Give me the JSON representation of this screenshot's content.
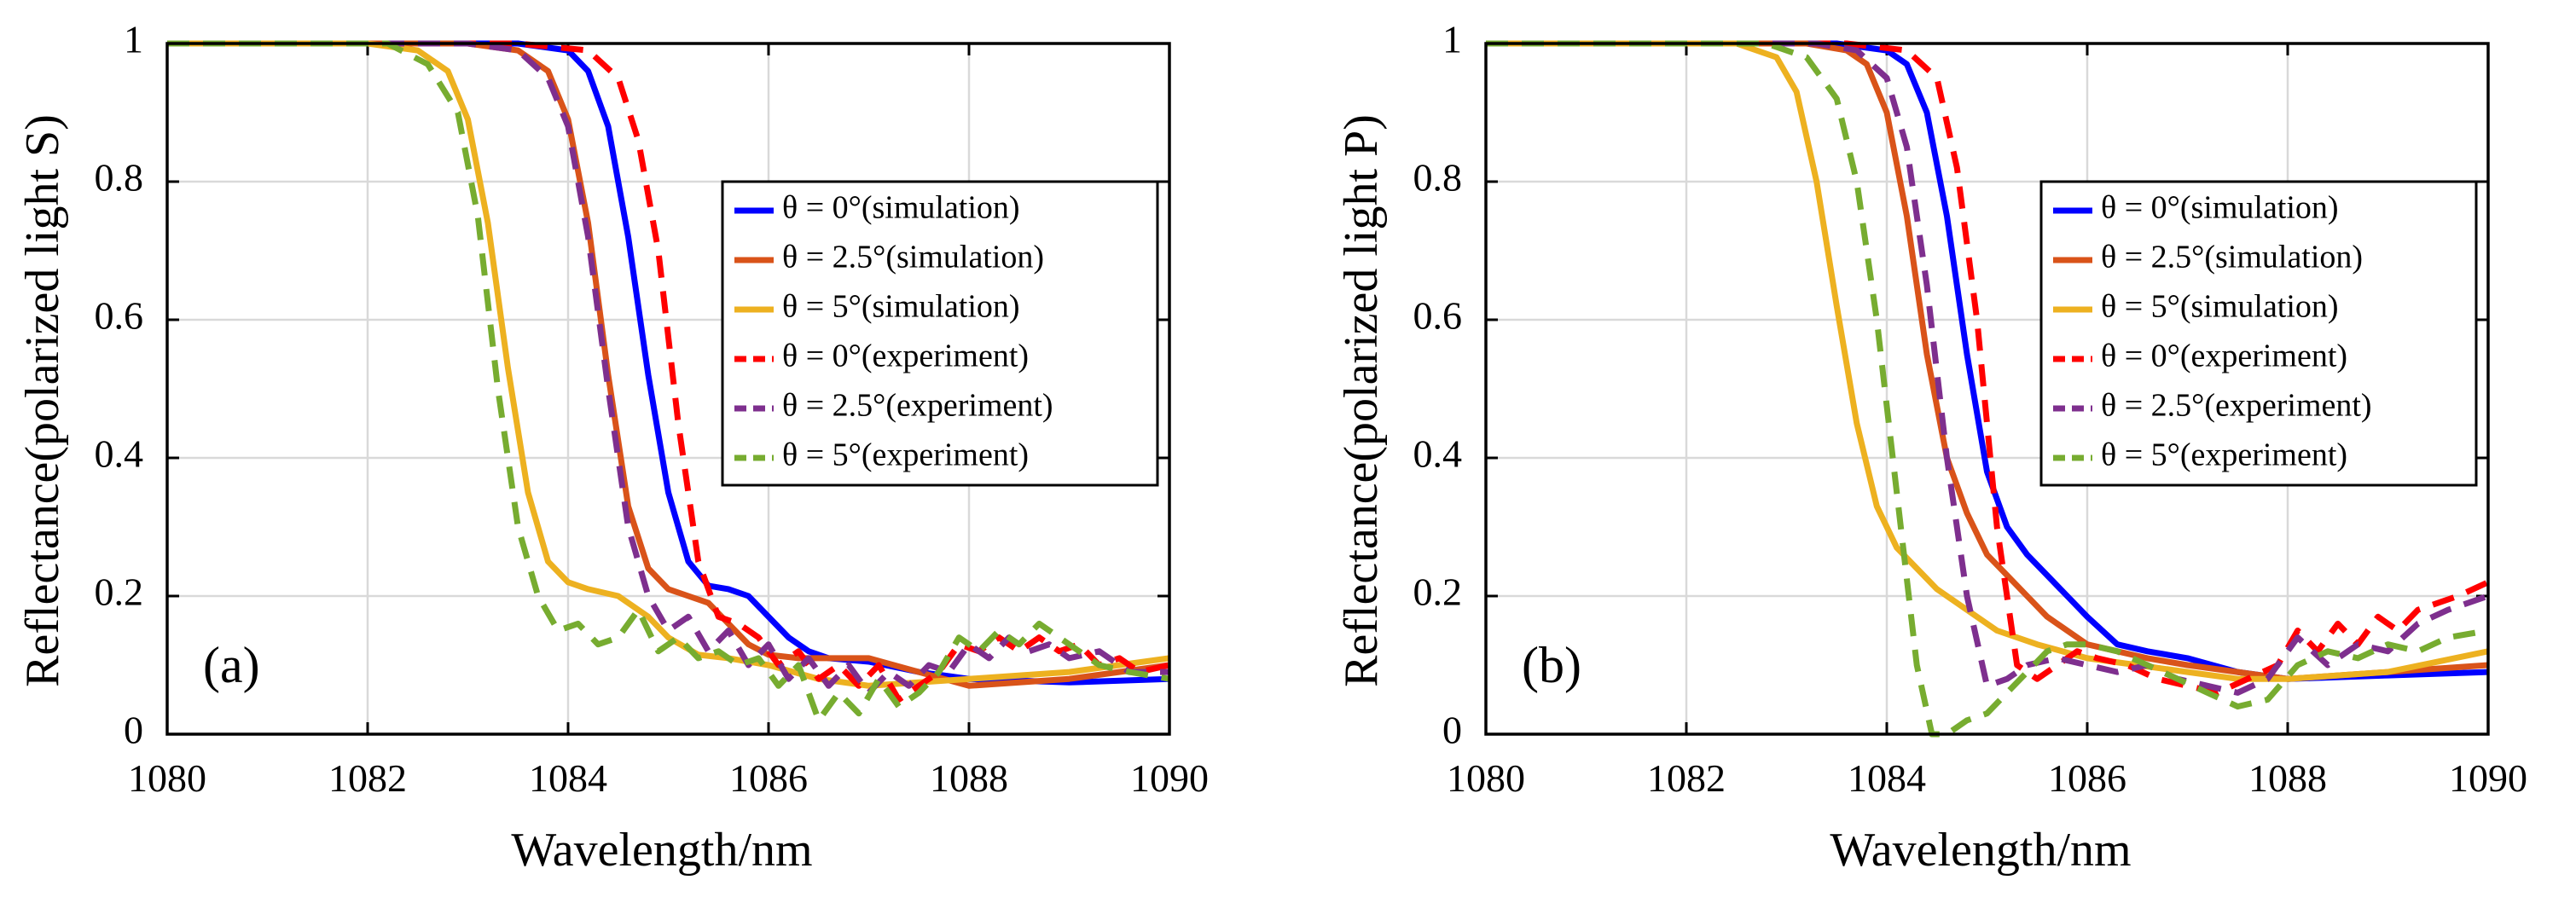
{
  "chart_data": [
    {
      "type": "line",
      "panel_label": "(a)",
      "xlabel": "Wavelength/nm",
      "ylabel": "Reflectance(polarized light S)",
      "xlim": [
        1080,
        1090
      ],
      "ylim": [
        0,
        1
      ],
      "xticks": [
        "1080",
        "1082",
        "1084",
        "1086",
        "1088",
        "1090"
      ],
      "yticks": [
        "0",
        "0.2",
        "0.4",
        "0.6",
        "0.8",
        "1"
      ],
      "grid": true,
      "legend_position": "right",
      "series": [
        {
          "name": "θ = 0°(simulation)",
          "color": "#0000ff",
          "dash": "solid",
          "x": [
            1080,
            1083.5,
            1084.0,
            1084.2,
            1084.4,
            1084.6,
            1084.8,
            1085.0,
            1085.2,
            1085.4,
            1085.6,
            1085.8,
            1086.0,
            1086.2,
            1086.4,
            1086.6,
            1087.0,
            1087.5,
            1088.0,
            1089.0,
            1090.0
          ],
          "y": [
            1.0,
            1.0,
            0.99,
            0.96,
            0.88,
            0.72,
            0.52,
            0.35,
            0.25,
            0.215,
            0.21,
            0.2,
            0.17,
            0.14,
            0.12,
            0.11,
            0.105,
            0.09,
            0.08,
            0.075,
            0.08
          ]
        },
        {
          "name": "θ = 2.5°(simulation)",
          "color": "#d95319",
          "dash": "solid",
          "x": [
            1080,
            1083.0,
            1083.5,
            1083.8,
            1084.0,
            1084.2,
            1084.4,
            1084.6,
            1084.8,
            1085.0,
            1085.2,
            1085.4,
            1085.6,
            1085.8,
            1086.0,
            1086.3,
            1086.6,
            1087.0,
            1087.5,
            1088.0,
            1089.0,
            1090.0
          ],
          "y": [
            1.0,
            1.0,
            0.99,
            0.96,
            0.89,
            0.74,
            0.52,
            0.33,
            0.24,
            0.21,
            0.2,
            0.19,
            0.16,
            0.13,
            0.115,
            0.11,
            0.11,
            0.11,
            0.09,
            0.07,
            0.08,
            0.1
          ]
        },
        {
          "name": "θ = 5°(simulation)",
          "color": "#edb120",
          "dash": "solid",
          "x": [
            1080,
            1082.0,
            1082.5,
            1082.8,
            1083.0,
            1083.2,
            1083.4,
            1083.6,
            1083.8,
            1084.0,
            1084.2,
            1084.5,
            1084.8,
            1085.0,
            1085.3,
            1085.6,
            1086.0,
            1086.5,
            1087.0,
            1088.0,
            1089.0,
            1090.0
          ],
          "y": [
            1.0,
            1.0,
            0.99,
            0.96,
            0.89,
            0.74,
            0.53,
            0.35,
            0.25,
            0.22,
            0.21,
            0.2,
            0.17,
            0.14,
            0.115,
            0.11,
            0.1,
            0.08,
            0.07,
            0.08,
            0.09,
            0.11
          ]
        },
        {
          "name": "θ = 0°(experiment)",
          "color": "#ff0000",
          "dash": "dashed",
          "x": [
            1080,
            1083.5,
            1084.2,
            1084.5,
            1084.7,
            1084.9,
            1085.1,
            1085.3,
            1085.5,
            1085.7,
            1085.9,
            1086.1,
            1086.3,
            1086.5,
            1086.7,
            1086.9,
            1087.1,
            1087.3,
            1087.5,
            1087.7,
            1087.9,
            1088.1,
            1088.3,
            1088.5,
            1088.7,
            1088.9,
            1089.1,
            1089.3,
            1089.5,
            1089.7,
            1090.0
          ],
          "y": [
            1.0,
            1.0,
            0.99,
            0.95,
            0.86,
            0.7,
            0.45,
            0.25,
            0.17,
            0.16,
            0.14,
            0.1,
            0.12,
            0.08,
            0.1,
            0.07,
            0.1,
            0.05,
            0.07,
            0.09,
            0.13,
            0.12,
            0.14,
            0.12,
            0.14,
            0.12,
            0.13,
            0.1,
            0.11,
            0.09,
            0.1
          ]
        },
        {
          "name": "θ = 2.5°(experiment)",
          "color": "#7e2f8e",
          "dash": "dashed",
          "x": [
            1080,
            1083.0,
            1083.5,
            1083.8,
            1084.0,
            1084.2,
            1084.4,
            1084.6,
            1084.8,
            1085.0,
            1085.2,
            1085.4,
            1085.6,
            1085.8,
            1086.0,
            1086.2,
            1086.4,
            1086.6,
            1086.8,
            1087.0,
            1087.2,
            1087.4,
            1087.6,
            1087.8,
            1088.0,
            1088.2,
            1088.4,
            1088.6,
            1088.8,
            1089.0,
            1089.3,
            1089.6,
            1090.0
          ],
          "y": [
            1.0,
            1.0,
            0.99,
            0.95,
            0.88,
            0.72,
            0.5,
            0.3,
            0.2,
            0.15,
            0.17,
            0.12,
            0.15,
            0.1,
            0.13,
            0.08,
            0.11,
            0.07,
            0.1,
            0.06,
            0.09,
            0.07,
            0.1,
            0.09,
            0.13,
            0.11,
            0.14,
            0.12,
            0.13,
            0.11,
            0.12,
            0.09,
            0.09
          ]
        },
        {
          "name": "θ = 5°(experiment)",
          "color": "#77ac30",
          "dash": "dashed",
          "x": [
            1080,
            1082.2,
            1082.6,
            1082.9,
            1083.1,
            1083.3,
            1083.5,
            1083.7,
            1083.9,
            1084.1,
            1084.3,
            1084.5,
            1084.7,
            1084.9,
            1085.1,
            1085.3,
            1085.5,
            1085.7,
            1085.9,
            1086.1,
            1086.3,
            1086.5,
            1086.7,
            1086.9,
            1087.1,
            1087.3,
            1087.5,
            1087.7,
            1087.9,
            1088.1,
            1088.3,
            1088.5,
            1088.7,
            1088.9,
            1089.1,
            1089.3,
            1089.6,
            1090.0
          ],
          "y": [
            1.0,
            1.0,
            0.97,
            0.9,
            0.75,
            0.5,
            0.3,
            0.2,
            0.15,
            0.16,
            0.13,
            0.14,
            0.18,
            0.12,
            0.14,
            0.11,
            0.12,
            0.1,
            0.11,
            0.07,
            0.1,
            0.02,
            0.06,
            0.03,
            0.08,
            0.04,
            0.06,
            0.09,
            0.14,
            0.12,
            0.15,
            0.13,
            0.16,
            0.14,
            0.12,
            0.1,
            0.09,
            0.08
          ]
        }
      ]
    },
    {
      "type": "line",
      "panel_label": "(b)",
      "xlabel": "Wavelength/nm",
      "ylabel": "Reflectance(polarized light P)",
      "xlim": [
        1080,
        1090
      ],
      "ylim": [
        0,
        1
      ],
      "xticks": [
        "1080",
        "1082",
        "1084",
        "1086",
        "1088",
        "1090"
      ],
      "yticks": [
        "0",
        "0.2",
        "0.4",
        "0.6",
        "0.8",
        "1"
      ],
      "grid": true,
      "legend_position": "right",
      "series": [
        {
          "name": "θ = 0°(simulation)",
          "color": "#0000ff",
          "dash": "solid",
          "x": [
            1080,
            1083.5,
            1084.0,
            1084.2,
            1084.4,
            1084.6,
            1084.8,
            1085.0,
            1085.2,
            1085.4,
            1085.6,
            1085.8,
            1086.0,
            1086.3,
            1086.6,
            1087.0,
            1087.5,
            1088.0,
            1089.0,
            1090.0
          ],
          "y": [
            1.0,
            1.0,
            0.99,
            0.97,
            0.9,
            0.75,
            0.55,
            0.38,
            0.3,
            0.26,
            0.23,
            0.2,
            0.17,
            0.13,
            0.12,
            0.11,
            0.09,
            0.08,
            0.085,
            0.09
          ]
        },
        {
          "name": "θ = 2.5°(simulation)",
          "color": "#d95319",
          "dash": "solid",
          "x": [
            1080,
            1083.2,
            1083.6,
            1083.8,
            1084.0,
            1084.2,
            1084.4,
            1084.6,
            1084.8,
            1085.0,
            1085.2,
            1085.4,
            1085.6,
            1085.8,
            1086.0,
            1086.3,
            1086.6,
            1087.0,
            1087.5,
            1088.0,
            1089.0,
            1090.0
          ],
          "y": [
            1.0,
            1.0,
            0.99,
            0.97,
            0.9,
            0.75,
            0.55,
            0.4,
            0.32,
            0.26,
            0.23,
            0.2,
            0.17,
            0.15,
            0.13,
            0.12,
            0.11,
            0.1,
            0.09,
            0.08,
            0.09,
            0.1
          ]
        },
        {
          "name": "θ = 5°(simulation)",
          "color": "#edb120",
          "dash": "solid",
          "x": [
            1080,
            1082.5,
            1082.9,
            1083.1,
            1083.3,
            1083.5,
            1083.7,
            1083.9,
            1084.1,
            1084.3,
            1084.5,
            1084.8,
            1085.1,
            1085.5,
            1086.0,
            1086.5,
            1087.0,
            1087.5,
            1088.0,
            1089.0,
            1090.0
          ],
          "y": [
            1.0,
            1.0,
            0.98,
            0.93,
            0.8,
            0.62,
            0.45,
            0.33,
            0.27,
            0.24,
            0.21,
            0.18,
            0.15,
            0.13,
            0.11,
            0.1,
            0.09,
            0.08,
            0.08,
            0.09,
            0.12
          ]
        },
        {
          "name": "θ = 0°(experiment)",
          "color": "#ff0000",
          "dash": "dashed",
          "x": [
            1080,
            1083.6,
            1084.2,
            1084.5,
            1084.7,
            1084.9,
            1085.1,
            1085.3,
            1085.5,
            1085.7,
            1085.9,
            1086.1,
            1086.4,
            1086.7,
            1087.0,
            1087.3,
            1087.6,
            1087.9,
            1088.1,
            1088.3,
            1088.5,
            1088.7,
            1088.9,
            1089.1,
            1089.3,
            1089.5,
            1089.7,
            1090.0
          ],
          "y": [
            1.0,
            1.0,
            0.99,
            0.95,
            0.82,
            0.6,
            0.3,
            0.1,
            0.08,
            0.1,
            0.12,
            0.11,
            0.1,
            0.08,
            0.07,
            0.06,
            0.08,
            0.1,
            0.15,
            0.12,
            0.16,
            0.13,
            0.17,
            0.15,
            0.18,
            0.19,
            0.2,
            0.22
          ]
        },
        {
          "name": "θ = 2.5°(experiment)",
          "color": "#7e2f8e",
          "dash": "dashed",
          "x": [
            1080,
            1083.3,
            1083.7,
            1084.0,
            1084.2,
            1084.4,
            1084.6,
            1084.8,
            1085.0,
            1085.2,
            1085.4,
            1085.7,
            1086.0,
            1086.3,
            1086.6,
            1086.9,
            1087.2,
            1087.5,
            1087.8,
            1088.1,
            1088.4,
            1088.7,
            1089.0,
            1089.3,
            1089.6,
            1090.0
          ],
          "y": [
            1.0,
            1.0,
            0.99,
            0.95,
            0.85,
            0.65,
            0.4,
            0.2,
            0.07,
            0.08,
            0.1,
            0.11,
            0.1,
            0.09,
            0.1,
            0.08,
            0.07,
            0.06,
            0.08,
            0.14,
            0.1,
            0.13,
            0.12,
            0.16,
            0.18,
            0.2
          ]
        },
        {
          "name": "θ = 5°(experiment)",
          "color": "#77ac30",
          "dash": "dashed",
          "x": [
            1080,
            1082.8,
            1083.2,
            1083.5,
            1083.7,
            1083.9,
            1084.1,
            1084.3,
            1084.45,
            1084.6,
            1084.8,
            1085.0,
            1085.2,
            1085.4,
            1085.6,
            1085.8,
            1086.0,
            1086.3,
            1086.6,
            1086.9,
            1087.2,
            1087.5,
            1087.8,
            1088.1,
            1088.4,
            1088.7,
            1089.0,
            1089.3,
            1089.6,
            1090.0
          ],
          "y": [
            1.0,
            1.0,
            0.98,
            0.92,
            0.8,
            0.6,
            0.35,
            0.1,
            0.0,
            0.0,
            0.02,
            0.03,
            0.06,
            0.09,
            0.12,
            0.13,
            0.13,
            0.12,
            0.1,
            0.08,
            0.06,
            0.04,
            0.05,
            0.1,
            0.12,
            0.11,
            0.13,
            0.12,
            0.14,
            0.15
          ]
        }
      ]
    }
  ]
}
